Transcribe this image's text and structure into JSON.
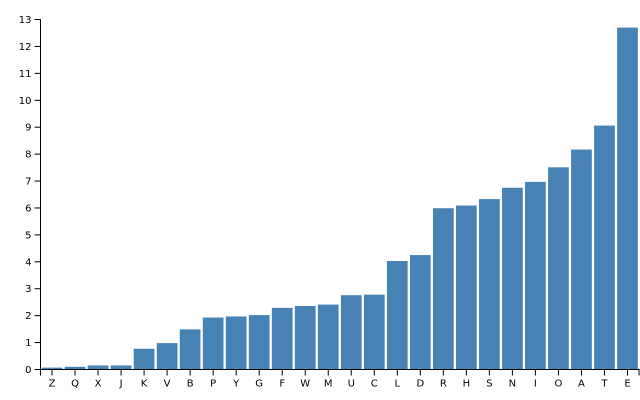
{
  "chart_data": {
    "type": "bar",
    "categories": [
      "Z",
      "Q",
      "X",
      "J",
      "K",
      "V",
      "B",
      "P",
      "Y",
      "G",
      "F",
      "W",
      "M",
      "U",
      "C",
      "L",
      "D",
      "R",
      "H",
      "S",
      "N",
      "I",
      "O",
      "A",
      "T",
      "E"
    ],
    "values": [
      0.07,
      0.1,
      0.15,
      0.15,
      0.77,
      0.98,
      1.49,
      1.93,
      1.97,
      2.02,
      2.29,
      2.36,
      2.41,
      2.76,
      2.78,
      4.03,
      4.25,
      5.99,
      6.09,
      6.33,
      6.75,
      6.97,
      7.51,
      8.17,
      9.06,
      12.7
    ],
    "color": "#4682b4",
    "ylim": [
      0,
      13
    ],
    "yticks": [
      0,
      1,
      2,
      3,
      4,
      5,
      6,
      7,
      8,
      9,
      10,
      11,
      12,
      13
    ],
    "grid": false
  }
}
